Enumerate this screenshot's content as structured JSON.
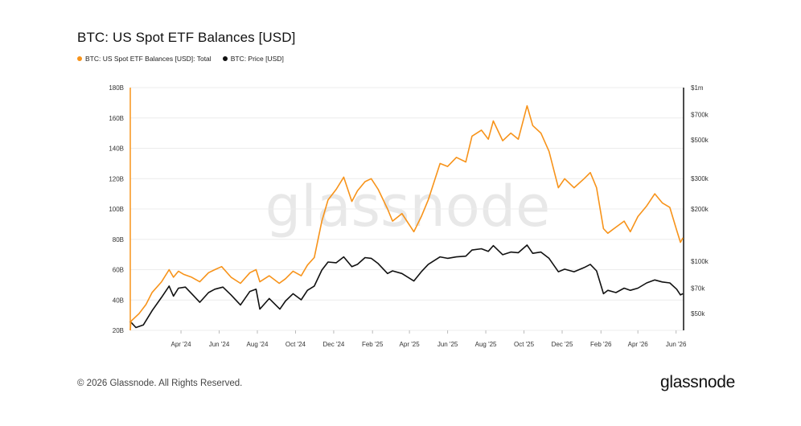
{
  "title": "BTC: US Spot ETF Balances [USD]",
  "watermark": "glassnode",
  "footer": {
    "copyright": "© 2026 Glassnode. All Rights Reserved.",
    "logo": "glassnode"
  },
  "colors": {
    "etf": "#f7931a",
    "price": "#111111",
    "grid": "#ececec"
  },
  "chart_data": {
    "type": "line",
    "title": "BTC: US Spot ETF Balances [USD]",
    "legend_position": "top-left",
    "grid": true,
    "x_ticks": [
      "Apr '24",
      "Jun '24",
      "Aug '24",
      "Oct '24",
      "Dec '24",
      "Feb '25",
      "Apr '25",
      "Jun '25",
      "Aug '25",
      "Oct '25",
      "Dec '25",
      "Feb '26",
      "Apr '26",
      "Jun '26"
    ],
    "y_left": {
      "ticks": [
        "20B",
        "40B",
        "60B",
        "80B",
        "100B",
        "120B",
        "140B",
        "160B",
        "180B"
      ],
      "range": [
        20,
        180
      ],
      "unit": "B"
    },
    "y_right": {
      "scale": "log",
      "ticks": [
        "$50k",
        "$70k",
        "$100k",
        "$200k",
        "$300k",
        "$500k",
        "$700k",
        "$1m"
      ],
      "range": [
        40,
        1000
      ],
      "unit": "k"
    },
    "series": [
      {
        "name": "BTC: US Spot ETF Balances [USD]: Total",
        "axis": "left",
        "points": [
          [
            "2024-01-11",
            20
          ],
          [
            "2024-01-12",
            26
          ],
          [
            "2024-01-25",
            31
          ],
          [
            "2024-02-05",
            37
          ],
          [
            "2024-02-15",
            45
          ],
          [
            "2024-03-01",
            52
          ],
          [
            "2024-03-13",
            60
          ],
          [
            "2024-03-20",
            55
          ],
          [
            "2024-03-28",
            59
          ],
          [
            "2024-04-05",
            57
          ],
          [
            "2024-04-18",
            55
          ],
          [
            "2024-05-01",
            52
          ],
          [
            "2024-05-15",
            58
          ],
          [
            "2024-05-25",
            60
          ],
          [
            "2024-06-05",
            62
          ],
          [
            "2024-06-20",
            55
          ],
          [
            "2024-07-05",
            51
          ],
          [
            "2024-07-20",
            58
          ],
          [
            "2024-07-30",
            60
          ],
          [
            "2024-08-05",
            52
          ],
          [
            "2024-08-20",
            56
          ],
          [
            "2024-09-05",
            51
          ],
          [
            "2024-09-15",
            54
          ],
          [
            "2024-09-27",
            59
          ],
          [
            "2024-10-10",
            56
          ],
          [
            "2024-10-20",
            63
          ],
          [
            "2024-10-31",
            68
          ],
          [
            "2024-11-12",
            92
          ],
          [
            "2024-11-22",
            106
          ],
          [
            "2024-12-05",
            113
          ],
          [
            "2024-12-17",
            121
          ],
          [
            "2024-12-30",
            105
          ],
          [
            "2025-01-08",
            112
          ],
          [
            "2025-01-20",
            118
          ],
          [
            "2025-01-30",
            120
          ],
          [
            "2025-02-10",
            113
          ],
          [
            "2025-02-25",
            100
          ],
          [
            "2025-03-05",
            92
          ],
          [
            "2025-03-20",
            97
          ],
          [
            "2025-04-08",
            85
          ],
          [
            "2025-04-20",
            95
          ],
          [
            "2025-05-01",
            106
          ],
          [
            "2025-05-20",
            130
          ],
          [
            "2025-06-01",
            128
          ],
          [
            "2025-06-15",
            134
          ],
          [
            "2025-06-30",
            131
          ],
          [
            "2025-07-10",
            148
          ],
          [
            "2025-07-25",
            152
          ],
          [
            "2025-08-05",
            146
          ],
          [
            "2025-08-13",
            158
          ],
          [
            "2025-08-28",
            145
          ],
          [
            "2025-09-10",
            150
          ],
          [
            "2025-09-22",
            146
          ],
          [
            "2025-10-06",
            168
          ],
          [
            "2025-10-15",
            155
          ],
          [
            "2025-10-28",
            150
          ],
          [
            "2025-11-10",
            138
          ],
          [
            "2025-11-25",
            114
          ],
          [
            "2025-12-05",
            120
          ],
          [
            "2025-12-20",
            114
          ],
          [
            "2026-01-05",
            120
          ],
          [
            "2026-01-15",
            124
          ],
          [
            "2026-01-25",
            114
          ],
          [
            "2026-02-05",
            87
          ],
          [
            "2026-02-12",
            84
          ],
          [
            "2026-02-25",
            88
          ],
          [
            "2026-03-10",
            92
          ],
          [
            "2026-03-20",
            85
          ],
          [
            "2026-04-01",
            95
          ],
          [
            "2026-04-15",
            102
          ],
          [
            "2026-04-28",
            110
          ],
          [
            "2026-05-10",
            104
          ],
          [
            "2026-05-22",
            101
          ],
          [
            "2026-06-02",
            86
          ],
          [
            "2026-06-08",
            78
          ],
          [
            "2026-06-12",
            81
          ]
        ]
      },
      {
        "name": "BTC: Price [USD]",
        "axis": "right",
        "points": [
          [
            "2024-01-11",
            45
          ],
          [
            "2024-01-20",
            41.5
          ],
          [
            "2024-02-01",
            43
          ],
          [
            "2024-02-15",
            52
          ],
          [
            "2024-03-01",
            62
          ],
          [
            "2024-03-13",
            72
          ],
          [
            "2024-03-20",
            63
          ],
          [
            "2024-03-28",
            70
          ],
          [
            "2024-04-08",
            71
          ],
          [
            "2024-04-20",
            64
          ],
          [
            "2024-05-01",
            58
          ],
          [
            "2024-05-15",
            66
          ],
          [
            "2024-05-25",
            69
          ],
          [
            "2024-06-07",
            71
          ],
          [
            "2024-06-20",
            64
          ],
          [
            "2024-07-05",
            56
          ],
          [
            "2024-07-20",
            67
          ],
          [
            "2024-07-30",
            69
          ],
          [
            "2024-08-05",
            53
          ],
          [
            "2024-08-20",
            61
          ],
          [
            "2024-09-06",
            53
          ],
          [
            "2024-09-15",
            59
          ],
          [
            "2024-09-27",
            65
          ],
          [
            "2024-10-10",
            60
          ],
          [
            "2024-10-20",
            68
          ],
          [
            "2024-10-31",
            72
          ],
          [
            "2024-11-12",
            89
          ],
          [
            "2024-11-22",
            99
          ],
          [
            "2024-12-05",
            98
          ],
          [
            "2024-12-17",
            106
          ],
          [
            "2024-12-30",
            93
          ],
          [
            "2025-01-08",
            96
          ],
          [
            "2025-01-20",
            105
          ],
          [
            "2025-01-30",
            104
          ],
          [
            "2025-02-10",
            97
          ],
          [
            "2025-02-25",
            85
          ],
          [
            "2025-03-05",
            88
          ],
          [
            "2025-03-20",
            85
          ],
          [
            "2025-04-08",
            77
          ],
          [
            "2025-04-20",
            87
          ],
          [
            "2025-05-01",
            96
          ],
          [
            "2025-05-20",
            106
          ],
          [
            "2025-06-01",
            104
          ],
          [
            "2025-06-15",
            106
          ],
          [
            "2025-06-30",
            107
          ],
          [
            "2025-07-10",
            116
          ],
          [
            "2025-07-25",
            118
          ],
          [
            "2025-08-05",
            114
          ],
          [
            "2025-08-13",
            123
          ],
          [
            "2025-08-28",
            109
          ],
          [
            "2025-09-10",
            113
          ],
          [
            "2025-09-22",
            112
          ],
          [
            "2025-10-06",
            124
          ],
          [
            "2025-10-15",
            111
          ],
          [
            "2025-10-28",
            113
          ],
          [
            "2025-11-10",
            104
          ],
          [
            "2025-11-25",
            87
          ],
          [
            "2025-12-05",
            90
          ],
          [
            "2025-12-20",
            87
          ],
          [
            "2026-01-05",
            92
          ],
          [
            "2026-01-15",
            96
          ],
          [
            "2026-01-25",
            88
          ],
          [
            "2026-02-05",
            65
          ],
          [
            "2026-02-12",
            68
          ],
          [
            "2026-02-25",
            66
          ],
          [
            "2026-03-10",
            70
          ],
          [
            "2026-03-20",
            68
          ],
          [
            "2026-04-01",
            70
          ],
          [
            "2026-04-15",
            75
          ],
          [
            "2026-04-28",
            78
          ],
          [
            "2026-05-10",
            76
          ],
          [
            "2026-05-22",
            75
          ],
          [
            "2026-06-02",
            69
          ],
          [
            "2026-06-08",
            64
          ],
          [
            "2026-06-12",
            65
          ]
        ]
      }
    ]
  }
}
